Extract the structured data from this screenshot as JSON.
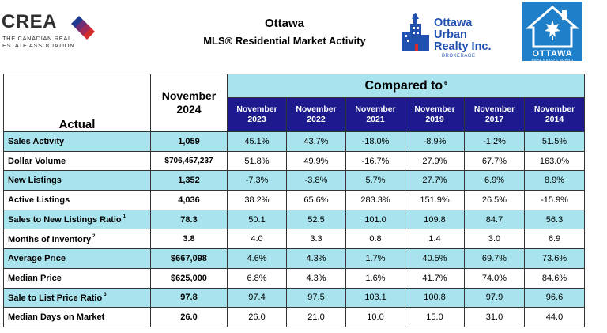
{
  "header": {
    "crea_logo": {
      "wordmark": "CREA",
      "line1": "THE CANADIAN REAL",
      "line2": "ESTATE ASSOCIATION"
    },
    "title": "Ottawa",
    "subtitle": "MLS® Residential Market Activity",
    "brokerage_logo": {
      "line1": "Ottawa",
      "line2": "Urban",
      "line3": "Realty Inc.",
      "tag": "BROKERAGE"
    },
    "board_logo": {
      "line1": "OTTAWA",
      "line2": "REAL ESTATE BOARD"
    }
  },
  "table": {
    "actual_header": "Actual",
    "current_period": {
      "line1": "November",
      "line2": "2024"
    },
    "compared_to": "Compared to",
    "compared_sup": "6",
    "periods": [
      {
        "month": "November",
        "year": "2023"
      },
      {
        "month": "November",
        "year": "2022"
      },
      {
        "month": "November",
        "year": "2021"
      },
      {
        "month": "November",
        "year": "2019"
      },
      {
        "month": "November",
        "year": "2017"
      },
      {
        "month": "November",
        "year": "2014"
      }
    ],
    "rows": [
      {
        "label": "Sales Activity",
        "sup": "",
        "current": "1,059",
        "values": [
          "45.1%",
          "43.7%",
          "-18.0%",
          "-8.9%",
          "-1.2%",
          "51.5%"
        ]
      },
      {
        "label": "Dollar Volume",
        "sup": "",
        "current": "$706,457,237",
        "values": [
          "51.8%",
          "49.9%",
          "-16.7%",
          "27.9%",
          "67.7%",
          "163.0%"
        ]
      },
      {
        "label": "New Listings",
        "sup": "",
        "current": "1,352",
        "values": [
          "-7.3%",
          "-3.8%",
          "5.7%",
          "27.7%",
          "6.9%",
          "8.9%"
        ]
      },
      {
        "label": "Active Listings",
        "sup": "",
        "current": "4,036",
        "values": [
          "38.2%",
          "65.6%",
          "283.3%",
          "151.9%",
          "26.5%",
          "-15.9%"
        ]
      },
      {
        "label": "Sales to New Listings Ratio",
        "sup": "1",
        "current": "78.3",
        "values": [
          "50.1",
          "52.5",
          "101.0",
          "109.8",
          "84.7",
          "56.3"
        ]
      },
      {
        "label": "Months of Inventory",
        "sup": "2",
        "current": "3.8",
        "values": [
          "4.0",
          "3.3",
          "0.8",
          "1.4",
          "3.0",
          "6.9"
        ]
      },
      {
        "label": "Average Price",
        "sup": "",
        "current": "$667,098",
        "values": [
          "4.6%",
          "4.3%",
          "1.7%",
          "40.5%",
          "69.7%",
          "73.6%"
        ]
      },
      {
        "label": "Median Price",
        "sup": "",
        "current": "$625,000",
        "values": [
          "6.8%",
          "4.3%",
          "1.6%",
          "41.7%",
          "74.0%",
          "84.6%"
        ]
      },
      {
        "label": "Sale to List Price Ratio",
        "sup": "3",
        "current": "97.8",
        "values": [
          "97.4",
          "97.5",
          "103.1",
          "100.8",
          "97.9",
          "96.6"
        ]
      },
      {
        "label": "Median Days on Market",
        "sup": "",
        "current": "26.0",
        "values": [
          "26.0",
          "21.0",
          "10.0",
          "15.0",
          "31.0",
          "44.0"
        ]
      }
    ]
  },
  "colors": {
    "teal": "#a9e4ee",
    "navy": "#1c1a8c",
    "brokerage_blue": "#2050b0",
    "board_blue": "#1f7fc8"
  }
}
